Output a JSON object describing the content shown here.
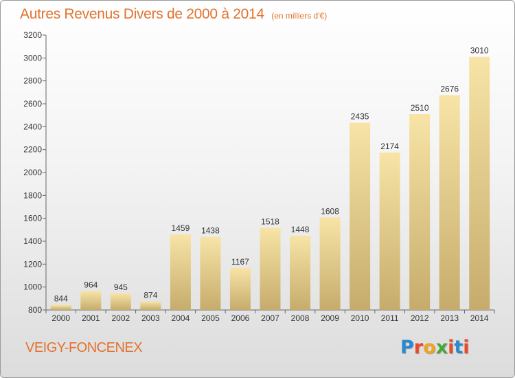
{
  "header": {
    "title": "Autres Revenus Divers de 2000 à 2014",
    "subtitle": "(en milliers d'€)"
  },
  "footer": {
    "commune": "VEIGY-FONCENEX"
  },
  "logo": {
    "text": "Proxiti",
    "colors": [
      "#2a8ad0",
      "#e84b2c",
      "#f0a31e",
      "#47a83a",
      "#e84b2c",
      "#2a8ad0",
      "#e84b2c"
    ]
  },
  "colors": {
    "title": "#e2722e",
    "bar_light": "#f7e4a6",
    "bar_dark": "#c6ac6c",
    "axis": "#666666"
  },
  "chart_data": {
    "type": "bar",
    "categories": [
      "2000",
      "2001",
      "2002",
      "2003",
      "2004",
      "2005",
      "2006",
      "2007",
      "2008",
      "2009",
      "2010",
      "2011",
      "2012",
      "2013",
      "2014"
    ],
    "values": [
      844,
      964,
      945,
      874,
      1459,
      1438,
      1167,
      1518,
      1448,
      1608,
      2435,
      2174,
      2510,
      2676,
      3010
    ],
    "ylim": [
      800,
      3200
    ],
    "yticks": [
      800,
      1000,
      1200,
      1400,
      1600,
      1800,
      2000,
      2200,
      2400,
      2600,
      2800,
      3000,
      3200
    ],
    "xlabel": "",
    "ylabel": "",
    "grid": false,
    "data_labels": true
  }
}
